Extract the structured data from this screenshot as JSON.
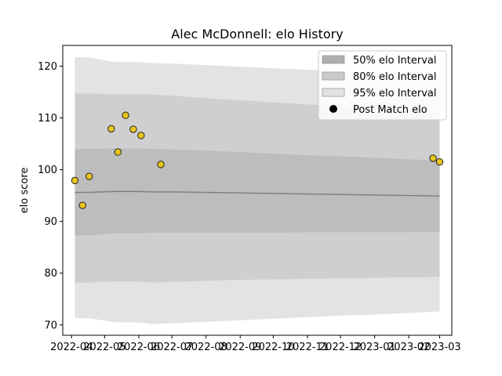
{
  "chart_data": {
    "type": "line",
    "title": "Alec McDonnell: elo History",
    "xlabel": "",
    "ylabel": "elo score",
    "xlim": [
      "2022-03-24",
      "2023-03-12"
    ],
    "ylim": [
      68,
      124
    ],
    "x_ticks": [
      "2022-04",
      "2022-05",
      "2022-06",
      "2022-07",
      "2022-08",
      "2022-09",
      "2022-10",
      "2022-11",
      "2022-12",
      "2023-01",
      "2023-02",
      "2023-03"
    ],
    "y_ticks": [
      70,
      80,
      90,
      100,
      110,
      120
    ],
    "grid": false,
    "legend_position": "top-right",
    "legend": [
      {
        "label": "50% elo Interval",
        "kind": "band",
        "color": "#b0b0b0"
      },
      {
        "label": "80% elo Interval",
        "kind": "band",
        "color": "#cacaca"
      },
      {
        "label": "95% elo Interval",
        "kind": "band",
        "color": "#e2e2e2"
      },
      {
        "label": "Post Match elo",
        "kind": "marker",
        "color": "#000000"
      }
    ],
    "colors": {
      "band95": "#e3e3e3",
      "band80": "#cfcfcf",
      "band50": "#bdbdbd",
      "mean_line": "#808080",
      "point_fill": "#e8c51c",
      "point_edge": "#222222"
    },
    "bands": {
      "x": [
        "2022-04-04",
        "2022-04-17",
        "2022-05-10",
        "2022-05-31",
        "2022-06-13",
        "2022-07-01",
        "2022-08-01",
        "2022-09-01",
        "2022-10-01",
        "2022-11-01",
        "2022-12-01",
        "2023-01-01",
        "2023-02-01",
        "2023-03-01"
      ],
      "mean": [
        95.6,
        95.6,
        95.8,
        95.8,
        95.7,
        95.7,
        95.6,
        95.5,
        95.4,
        95.3,
        95.2,
        95.1,
        95.0,
        94.9
      ],
      "p50_low": [
        87.3,
        87.3,
        87.7,
        87.7,
        87.8,
        87.8,
        87.8,
        87.8,
        87.8,
        87.9,
        87.9,
        87.9,
        87.9,
        88.0
      ],
      "p50_high": [
        104.0,
        104.0,
        104.1,
        104.1,
        104.0,
        103.9,
        103.7,
        103.4,
        103.1,
        102.8,
        102.6,
        102.3,
        102.0,
        101.8
      ],
      "p80_low": [
        78.2,
        78.2,
        78.4,
        78.4,
        78.2,
        78.3,
        78.5,
        78.7,
        78.8,
        78.9,
        79.0,
        79.1,
        79.2,
        79.3
      ],
      "p80_high": [
        114.7,
        114.7,
        114.6,
        114.6,
        114.5,
        114.3,
        113.8,
        113.4,
        113.0,
        112.6,
        112.2,
        111.8,
        111.4,
        111.0
      ],
      "p95_low": [
        71.3,
        71.3,
        70.5,
        70.5,
        70.2,
        70.3,
        70.6,
        70.9,
        71.2,
        71.5,
        71.8,
        72.0,
        72.3,
        72.6
      ],
      "p95_high": [
        121.7,
        121.7,
        120.8,
        120.8,
        120.6,
        120.5,
        120.2,
        119.9,
        119.6,
        119.3,
        119.0,
        118.7,
        118.4,
        118.1
      ]
    },
    "series": [
      {
        "name": "Post Match elo",
        "points": [
          {
            "x": "2022-04-04",
            "y": 97.9
          },
          {
            "x": "2022-04-11",
            "y": 93.1
          },
          {
            "x": "2022-04-17",
            "y": 98.7
          },
          {
            "x": "2022-05-07",
            "y": 107.9
          },
          {
            "x": "2022-05-13",
            "y": 103.4
          },
          {
            "x": "2022-05-20",
            "y": 110.5
          },
          {
            "x": "2022-05-27",
            "y": 107.8
          },
          {
            "x": "2022-06-03",
            "y": 106.6
          },
          {
            "x": "2022-06-21",
            "y": 101.0
          },
          {
            "x": "2023-02-23",
            "y": 102.2
          },
          {
            "x": "2023-03-01",
            "y": 101.5
          }
        ]
      }
    ]
  }
}
